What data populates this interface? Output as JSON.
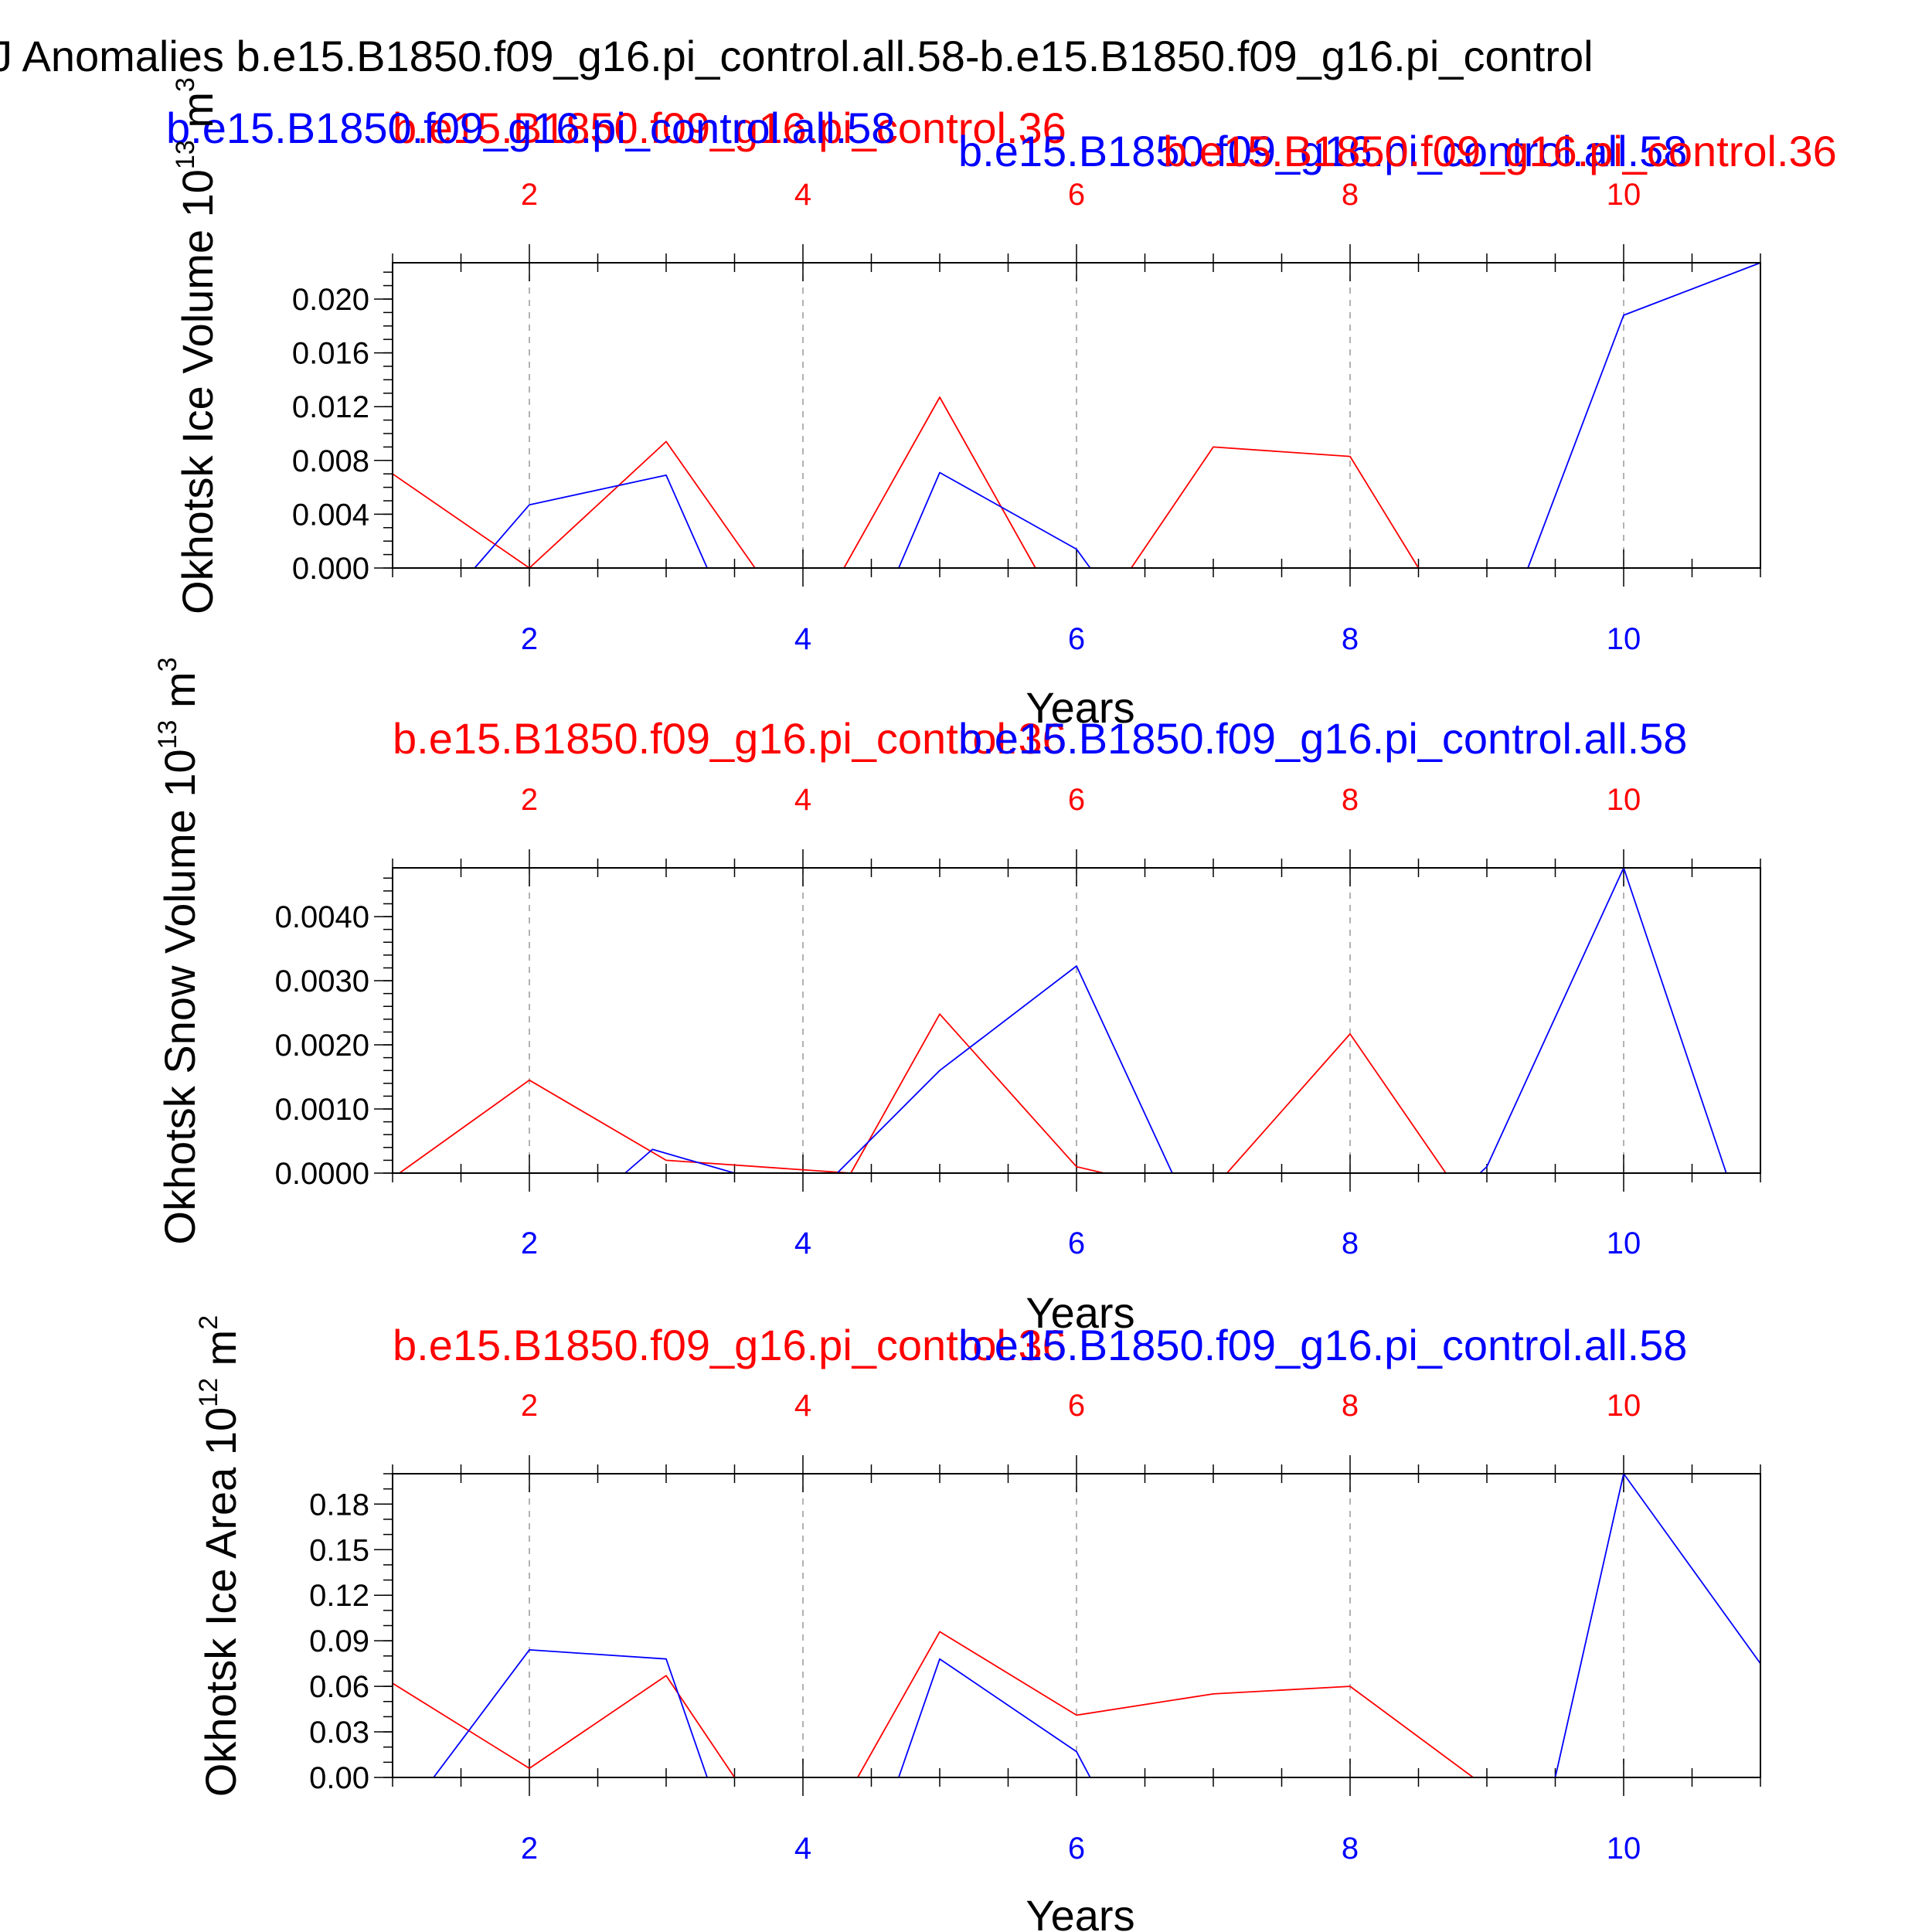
{
  "title": "J Anomalies b.e15.B1850.f09_g16.pi_control.all.58-b.e15.B1850.f09_g16.pi_control",
  "colors": {
    "red_run": "#ff0000",
    "blue_run": "#0000ff",
    "frame": "#000000",
    "grid": "#999999"
  },
  "chart_data": [
    {
      "type": "line",
      "title": "",
      "xlabel": "Years",
      "ylabel_main": "Okhotsk Ice Volume 10",
      "ylabel_exp": "13",
      "ylabel_unit": "m",
      "ylabel_unit_exp": "3",
      "xlim": [
        1,
        11
      ],
      "ylim": [
        0,
        0.0227
      ],
      "grid_x": true,
      "x_ticks": [
        2,
        4,
        6,
        8,
        10
      ],
      "x_tick_labels": [
        "2",
        "4",
        "6",
        "8",
        "10"
      ],
      "y_ticks": [
        0,
        0.004,
        0.008,
        0.012,
        0.016,
        0.02
      ],
      "y_tick_labels": [
        "0.000",
        "0.004",
        "0.008",
        "0.012",
        "0.016",
        "0.020"
      ],
      "y_minor_step": 0.001,
      "series": [
        {
          "name": "b.e15.B1850.f09_g16.pi_control.36",
          "color": "#ff0000",
          "x": [
            1,
            2,
            3,
            3.65,
            4.3,
            5,
            5.7,
            6.4,
            7,
            8,
            8.5,
            11
          ],
          "values": [
            0.007,
            0.0,
            0.0094,
            0.0,
            0.0,
            0.0127,
            0.0,
            0.0,
            0.009,
            0.0083,
            0.0,
            0.0
          ]
        },
        {
          "name": "b.e15.B1850.f09_g16.pi_control.all.58",
          "color": "#0000ff",
          "x": [
            1,
            1.6,
            2,
            3,
            3.3,
            4.7,
            5,
            6,
            6.1,
            9.3,
            10,
            11
          ],
          "values": [
            0.0,
            0.0,
            0.0047,
            0.0069,
            0.0,
            0.0,
            0.0071,
            0.0014,
            0.0,
            0.0,
            0.0188,
            0.0227
          ]
        }
      ],
      "run_labels": [
        {
          "text": "b.e15.B1850.f09_g16.pi_control.36",
          "color": "#ff0000"
        },
        {
          "text": "b.e15.B1850.f09_g16.pi_control.all.58",
          "color": "#0000ff"
        },
        {
          "text": "b.e15.B1850.f09_g16.pi_control.all.58",
          "color": "#0000ff"
        },
        {
          "text": "b.e15.B1850.f09_g16.pi_control.36",
          "color": "#ff0000"
        }
      ]
    },
    {
      "type": "line",
      "title": "",
      "xlabel": "Years",
      "ylabel_main": "Okhotsk Snow Volume 10",
      "ylabel_exp": "13",
      "ylabel_unit": "m",
      "ylabel_unit_exp": "3",
      "xlim": [
        1,
        11
      ],
      "ylim": [
        0,
        0.00476
      ],
      "grid_x": true,
      "x_ticks": [
        2,
        4,
        6,
        8,
        10
      ],
      "x_tick_labels": [
        "2",
        "4",
        "6",
        "8",
        "10"
      ],
      "y_ticks": [
        0,
        0.001,
        0.002,
        0.003,
        0.004
      ],
      "y_tick_labels": [
        "0.0000",
        "0.0010",
        "0.0020",
        "0.0030",
        "0.0040"
      ],
      "y_minor_step": 0.0002,
      "series": [
        {
          "name": "b.e15.B1850.f09_g16.pi_control.36",
          "color": "#ff0000",
          "x": [
            1,
            1.05,
            2,
            3.0,
            4.35,
            5,
            6,
            6.2,
            7.1,
            8,
            8.7,
            11
          ],
          "values": [
            0.0,
            0.0,
            0.00145,
            0.0002,
            0.0,
            0.00248,
            0.0001,
            0.0,
            0.0,
            0.00217,
            0.0,
            0.0
          ]
        },
        {
          "name": "b.e15.B1850.f09_g16.pi_control.all.58",
          "color": "#0000ff",
          "x": [
            1,
            2.7,
            2.9,
            3.5,
            4.25,
            5,
            6,
            6.7,
            8.95,
            9.0,
            10,
            10.75,
            11
          ],
          "values": [
            0.0,
            0.0,
            0.00037,
            0.0,
            0.0,
            0.0016,
            0.00323,
            0.0,
            0.0,
            0.0001,
            0.00476,
            0.0,
            0.0
          ]
        }
      ],
      "run_labels": [
        {
          "text": "b.e15.B1850.f09_g16.pi_control.36",
          "color": "#ff0000"
        },
        {
          "text": "b.e15.B1850.f09_g16.pi_control.all.58",
          "color": "#0000ff"
        }
      ]
    },
    {
      "type": "line",
      "title": "",
      "xlabel": "Years",
      "ylabel_main": "Okhotsk Ice Area 10",
      "ylabel_exp": "12",
      "ylabel_unit": "m",
      "ylabel_unit_exp": "2",
      "xlim": [
        1,
        11
      ],
      "ylim": [
        0,
        0.2
      ],
      "grid_x": true,
      "x_ticks": [
        2,
        4,
        6,
        8,
        10
      ],
      "x_tick_labels": [
        "2",
        "4",
        "6",
        "8",
        "10"
      ],
      "y_ticks": [
        0,
        0.03,
        0.06,
        0.09,
        0.12,
        0.15,
        0.18
      ],
      "y_tick_labels": [
        "0.00",
        "0.03",
        "0.06",
        "0.09",
        "0.12",
        "0.15",
        "0.18"
      ],
      "y_minor_step": 0.01,
      "series": [
        {
          "name": "b.e15.B1850.f09_g16.pi_control.36",
          "color": "#ff0000",
          "x": [
            1,
            2,
            3,
            3.5,
            4.4,
            5,
            6,
            7,
            8,
            8.9,
            11
          ],
          "values": [
            0.062,
            0.006,
            0.067,
            0.0,
            0.0,
            0.096,
            0.041,
            0.055,
            0.06,
            0.0,
            0.0
          ]
        },
        {
          "name": "b.e15.B1850.f09_g16.pi_control.all.58",
          "color": "#0000ff",
          "x": [
            1,
            1.3,
            2,
            3,
            3.3,
            4.7,
            5,
            6,
            6.1,
            9.5,
            10,
            11
          ],
          "values": [
            0.0,
            0.0,
            0.084,
            0.078,
            0.0,
            0.0,
            0.078,
            0.017,
            0.0,
            0.0,
            0.2,
            0.075
          ]
        }
      ],
      "run_labels": [
        {
          "text": "b.e15.B1850.f09_g16.pi_control.36",
          "color": "#ff0000"
        },
        {
          "text": "b.e15.B1850.f09_g16.pi_control.all.58",
          "color": "#0000ff"
        }
      ]
    }
  ]
}
